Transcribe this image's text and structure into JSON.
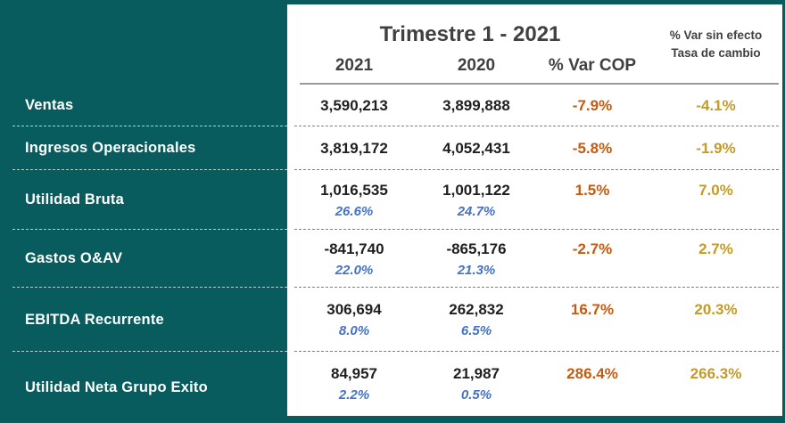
{
  "colors": {
    "teal": "#095C5E",
    "orange": "#C55A11",
    "gold": "#C49B27",
    "blue": "#4472C4",
    "ink": "#1F1F1F"
  },
  "header": {
    "title": "Trimestre 1 - 2021",
    "col_2021": "2021",
    "col_2020": "2020",
    "col_var_cop": "% Var COP",
    "col_var_fx_line1": "% Var sin efecto",
    "col_var_fx_line2": "Tasa de cambio"
  },
  "rows": [
    {
      "label": "Ventas",
      "y2021": "3,590,213",
      "y2020": "3,899,888",
      "var_cop": "-7.9%",
      "var_fx": "-4.1%"
    },
    {
      "label": "Ingresos Operacionales",
      "y2021": "3,819,172",
      "y2020": "4,052,431",
      "var_cop": "-5.8%",
      "var_fx": "-1.9%"
    },
    {
      "label": "Utilidad Bruta",
      "y2021": "1,016,535",
      "y2020": "1,001,122",
      "var_cop": "1.5%",
      "var_fx": "7.0%",
      "margin_2021": "26.6%",
      "margin_2020": "24.7%"
    },
    {
      "label": "Gastos O&AV",
      "y2021": "-841,740",
      "y2020": "-865,176",
      "var_cop": "-2.7%",
      "var_fx": "2.7%",
      "margin_2021": "22.0%",
      "margin_2020": "21.3%"
    },
    {
      "label": "EBITDA Recurrente",
      "y2021": "306,694",
      "y2020": "262,832",
      "var_cop": "16.7%",
      "var_fx": "20.3%",
      "margin_2021": "8.0%",
      "margin_2020": "6.5%"
    },
    {
      "label": "Utilidad Neta Grupo Exito",
      "y2021": "84,957",
      "y2020": "21,987",
      "var_cop": "286.4%",
      "var_fx": "266.3%",
      "margin_2021": "2.2%",
      "margin_2020": "0.5%"
    }
  ]
}
